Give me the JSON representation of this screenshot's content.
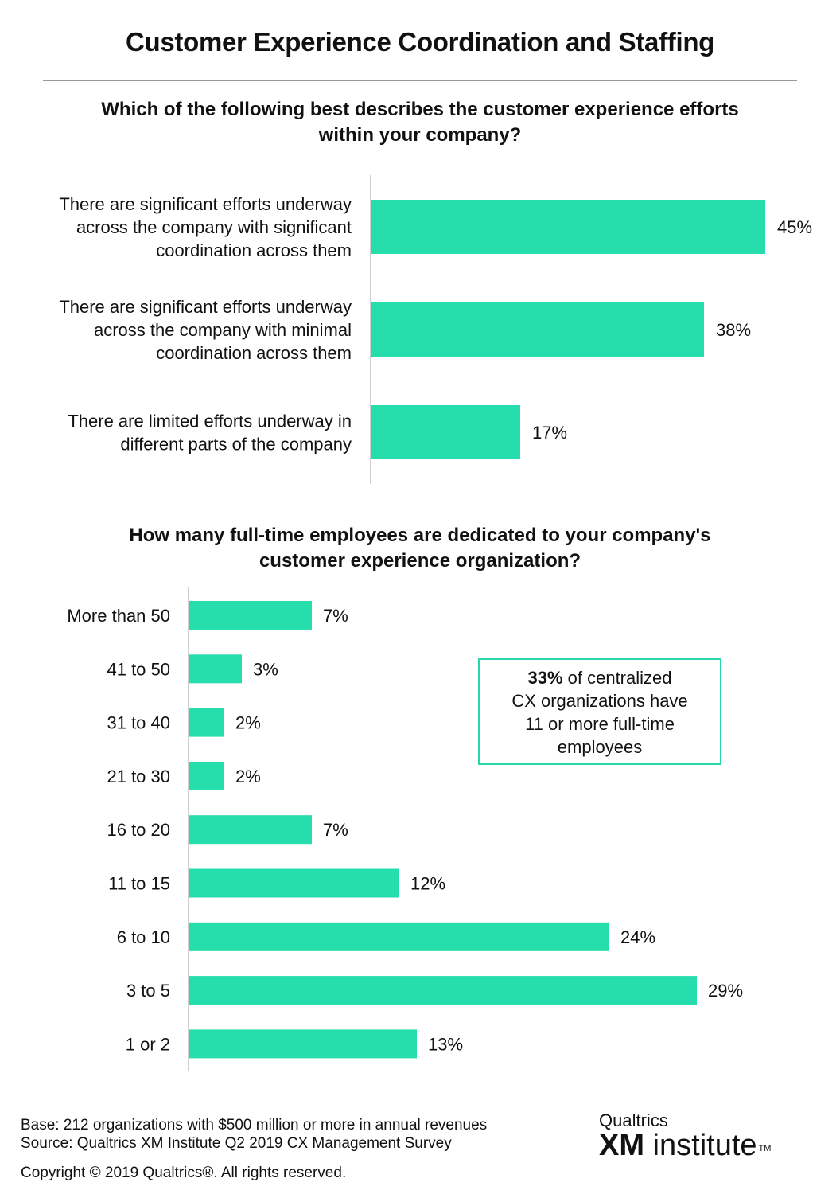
{
  "title": "Customer Experience Coordination and Staffing",
  "colors": {
    "bar": "#26ddac",
    "axis": "#cfcfcf",
    "rule": "#9a9a9a"
  },
  "chart_data": [
    {
      "type": "bar",
      "orientation": "horizontal",
      "title": "Which of the following best describes the customer experience efforts within your company?",
      "title_lines": [
        "Which of the following best describes the customer experience efforts",
        "within your company?"
      ],
      "categories": [
        [
          "There are significant efforts underway",
          "across the company with significant",
          "coordination across them"
        ],
        [
          "There are significant efforts underway",
          "across the company with minimal",
          "coordination across them"
        ],
        [
          "There are limited efforts underway in",
          "different parts of the company"
        ]
      ],
      "values": [
        45,
        38,
        17
      ],
      "value_labels": [
        "45%",
        "38%",
        "17%"
      ]
    },
    {
      "type": "bar",
      "orientation": "horizontal",
      "title": "How many full-time employees are dedicated to your company's customer experience organization?",
      "title_lines": [
        "How many full-time employees are dedicated to your company's",
        "customer experience organization?"
      ],
      "categories": [
        "More than 50",
        "41 to 50",
        "31 to 40",
        "21 to 30",
        "16 to 20",
        "11 to 15",
        "6 to 10",
        "3 to 5",
        "1 or 2"
      ],
      "values": [
        7,
        3,
        2,
        2,
        7,
        12,
        24,
        29,
        13
      ],
      "value_labels": [
        "7%",
        "3%",
        "2%",
        "2%",
        "7%",
        "12%",
        "24%",
        "29%",
        "13%"
      ]
    }
  ],
  "callout": {
    "bold": "33%",
    "text_line1": " of centralized",
    "line2": "CX organizations have",
    "line3": "11 or more full-time",
    "line4": "employees"
  },
  "footer": {
    "base": "Base: 212 organizations with $500 million or more in annual revenues",
    "source": "Source: Qualtrics XM Institute Q2 2019 CX Management Survey",
    "copyright": "Copyright © 2019 Qualtrics®.  All rights reserved."
  },
  "logo": {
    "top": "Qualtrics",
    "xm": "XM",
    "word": " institute",
    "tm": "TM"
  }
}
